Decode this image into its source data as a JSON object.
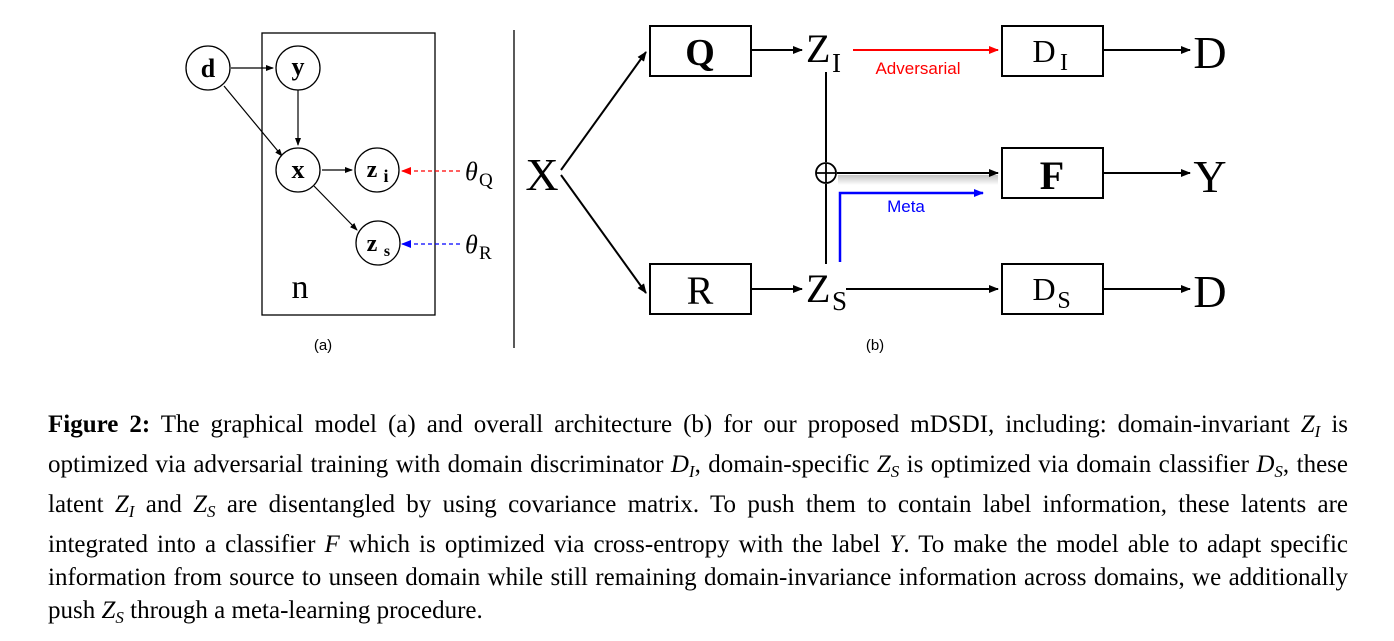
{
  "panel_a": {
    "nodes": {
      "d": "d",
      "y": "y",
      "x": "x",
      "z_i": "z",
      "z_i_sub": "i",
      "z_s": "z",
      "z_s_sub": "s"
    },
    "theta_q": "θ",
    "theta_q_sub": "Q",
    "theta_r": "θ",
    "theta_r_sub": "R",
    "plate_label": "n",
    "panel_label": "(a)"
  },
  "panel_b": {
    "input": "X",
    "encoder_q": "Q",
    "encoder_r": "R",
    "z_i": "Z",
    "z_i_sub": "I",
    "z_s": "Z",
    "z_s_sub": "S",
    "disc_i": "D",
    "disc_i_sub": "I",
    "disc_s": "D",
    "disc_s_sub": "S",
    "classifier": "F",
    "out_d_top": "D",
    "out_y": "Y",
    "out_d_bottom": "D",
    "adversarial_label": "Adversarial",
    "meta_label": "Meta",
    "combine_symbol": "⊕",
    "panel_label": "(b)"
  },
  "colors": {
    "adversarial": "#ff0000",
    "meta": "#0000ff",
    "theta_q_arrow": "#ff0000",
    "theta_r_arrow": "#0000ff"
  },
  "caption": {
    "label": "Figure 2:",
    "t1": " The graphical model (a) and overall architecture (b) for our proposed mDSDI, including: domain-invariant ",
    "t2": " is optimized via adversarial training with domain discriminator ",
    "t3": ", domain-specific ",
    "t4": " is optimized via domain classifier ",
    "t5": ", these latent ",
    "t6": " and ",
    "t7": " are disentangled by using covariance matrix. To push them to contain label information, these latents are integrated into a classifier ",
    "t8": " which is optimized via cross-entropy with the label ",
    "t9": ". To make the model able to adapt specific information from source to unseen domain while still remaining domain-invariance information across domains, we additionally push ",
    "t10": " through a meta-learning procedure.",
    "m_ZI": "Z",
    "m_ZI_sub": "I",
    "m_DI": "D",
    "m_DI_sub": "I",
    "m_ZS": "Z",
    "m_ZS_sub": "S",
    "m_DS": "D",
    "m_DS_sub": "S",
    "m_ZI2": "Z",
    "m_ZI2_sub": "I",
    "m_ZS2": "Z",
    "m_ZS2_sub": "S",
    "m_F": "F",
    "m_Y": "Y",
    "m_ZS3": "Z",
    "m_ZS3_sub": "S"
  }
}
